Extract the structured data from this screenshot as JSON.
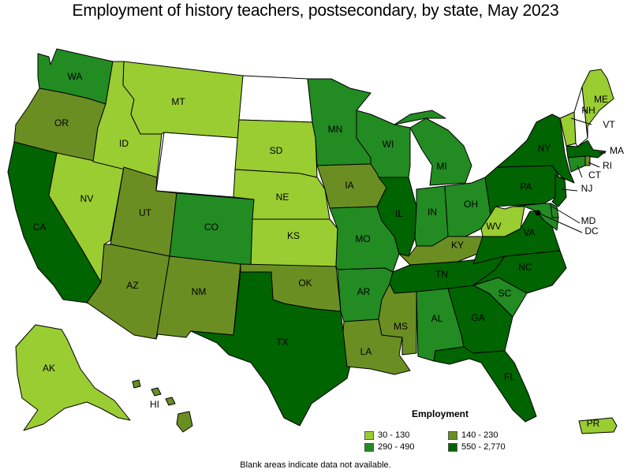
{
  "title": "Employment of history teachers, postsecondary, by state, May 2023",
  "legend": {
    "title": "Employment",
    "items": [
      {
        "label": "30 - 130",
        "color": "#9acd32"
      },
      {
        "label": "140 - 230",
        "color": "#6b8e23"
      },
      {
        "label": "290 - 490",
        "color": "#228b22"
      },
      {
        "label": "550 - 2,770",
        "color": "#006400"
      }
    ]
  },
  "footnote": "Blank areas indicate data not available.",
  "colors": {
    "c1": "#9acd32",
    "c2": "#6b8e23",
    "c3": "#228b22",
    "c4": "#006400",
    "none": "#ffffff",
    "stroke": "#000000"
  },
  "states": [
    {
      "abbr": "WA",
      "bin": "c3",
      "label": "WA"
    },
    {
      "abbr": "OR",
      "bin": "c2",
      "label": "OR"
    },
    {
      "abbr": "CA",
      "bin": "c4",
      "label": "CA"
    },
    {
      "abbr": "NV",
      "bin": "c1",
      "label": "NV"
    },
    {
      "abbr": "ID",
      "bin": "c1",
      "label": "ID"
    },
    {
      "abbr": "MT",
      "bin": "c1",
      "label": "MT"
    },
    {
      "abbr": "WY",
      "bin": "none",
      "label": ""
    },
    {
      "abbr": "UT",
      "bin": "c2",
      "label": "UT"
    },
    {
      "abbr": "AZ",
      "bin": "c2",
      "label": "AZ"
    },
    {
      "abbr": "CO",
      "bin": "c3",
      "label": "CO"
    },
    {
      "abbr": "NM",
      "bin": "c2",
      "label": "NM"
    },
    {
      "abbr": "ND",
      "bin": "none",
      "label": ""
    },
    {
      "abbr": "SD",
      "bin": "c1",
      "label": "SD"
    },
    {
      "abbr": "NE",
      "bin": "c1",
      "label": "NE"
    },
    {
      "abbr": "KS",
      "bin": "c1",
      "label": "KS"
    },
    {
      "abbr": "OK",
      "bin": "c2",
      "label": "OK"
    },
    {
      "abbr": "TX",
      "bin": "c4",
      "label": "TX"
    },
    {
      "abbr": "MN",
      "bin": "c3",
      "label": "MN"
    },
    {
      "abbr": "IA",
      "bin": "c2",
      "label": "IA"
    },
    {
      "abbr": "MO",
      "bin": "c3",
      "label": "MO"
    },
    {
      "abbr": "AR",
      "bin": "c3",
      "label": "AR"
    },
    {
      "abbr": "LA",
      "bin": "c2",
      "label": "LA"
    },
    {
      "abbr": "WI",
      "bin": "c3",
      "label": "WI"
    },
    {
      "abbr": "IL",
      "bin": "c4",
      "label": "IL"
    },
    {
      "abbr": "MI",
      "bin": "c3",
      "label": "MI"
    },
    {
      "abbr": "IN",
      "bin": "c3",
      "label": "IN"
    },
    {
      "abbr": "OH",
      "bin": "c3",
      "label": "OH"
    },
    {
      "abbr": "KY",
      "bin": "c2",
      "label": "KY"
    },
    {
      "abbr": "TN",
      "bin": "c4",
      "label": "TN"
    },
    {
      "abbr": "MS",
      "bin": "c2",
      "label": "MS"
    },
    {
      "abbr": "AL",
      "bin": "c3",
      "label": "AL"
    },
    {
      "abbr": "GA",
      "bin": "c4",
      "label": "GA"
    },
    {
      "abbr": "FL",
      "bin": "c4",
      "label": "FL"
    },
    {
      "abbr": "SC",
      "bin": "c3",
      "label": "SC"
    },
    {
      "abbr": "NC",
      "bin": "c4",
      "label": "NC"
    },
    {
      "abbr": "VA",
      "bin": "c4",
      "label": "VA"
    },
    {
      "abbr": "WV",
      "bin": "c1",
      "label": "WV"
    },
    {
      "abbr": "PA",
      "bin": "c4",
      "label": "PA"
    },
    {
      "abbr": "NY",
      "bin": "c4",
      "label": "NY"
    },
    {
      "abbr": "VT",
      "bin": "c1",
      "label": "VT"
    },
    {
      "abbr": "NH",
      "bin": "none",
      "label": "NH"
    },
    {
      "abbr": "ME",
      "bin": "c1",
      "label": "ME"
    },
    {
      "abbr": "MA",
      "bin": "c4",
      "label": "MA"
    },
    {
      "abbr": "RI",
      "bin": "c2",
      "label": "RI"
    },
    {
      "abbr": "CT",
      "bin": "c3",
      "label": "CT"
    },
    {
      "abbr": "NJ",
      "bin": "c4",
      "label": "NJ"
    },
    {
      "abbr": "DE",
      "bin": "c3",
      "label": ""
    },
    {
      "abbr": "MD",
      "bin": "c3",
      "label": "MD"
    },
    {
      "abbr": "DC",
      "bin": "c4",
      "label": "DC"
    },
    {
      "abbr": "AK",
      "bin": "c1",
      "label": "AK"
    },
    {
      "abbr": "HI",
      "bin": "c2",
      "label": "HI"
    },
    {
      "abbr": "PR",
      "bin": "c1",
      "label": "PR"
    }
  ]
}
